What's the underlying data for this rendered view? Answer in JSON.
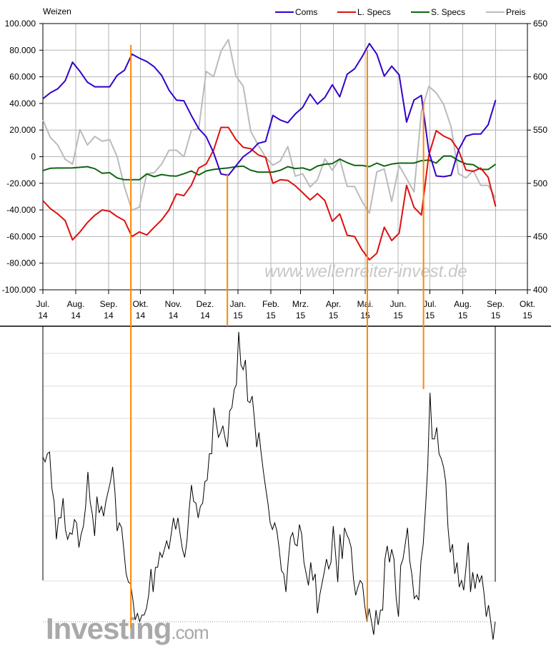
{
  "chart_data": [
    {
      "type": "line",
      "title": "Weizen",
      "legend_position": "top-right",
      "grid": true,
      "watermark": "www.wellenreiter-invest.de",
      "x_type": "date",
      "x_range": [
        "2014-07-01",
        "2015-10-01"
      ],
      "x_tick_labels": [
        [
          "Jul.",
          "14"
        ],
        [
          "Aug.",
          "14"
        ],
        [
          "Sep.",
          "14"
        ],
        [
          "Okt.",
          "14"
        ],
        [
          "Nov.",
          "14"
        ],
        [
          "Dez.",
          "14"
        ],
        [
          "Jan.",
          "15"
        ],
        [
          "Feb.",
          "15"
        ],
        [
          "Mrz.",
          "15"
        ],
        [
          "Apr.",
          "15"
        ],
        [
          "Mai.",
          "15"
        ],
        [
          "Jun.",
          "15"
        ],
        [
          "Jul.",
          "15"
        ],
        [
          "Aug.",
          "15"
        ],
        [
          "Sep.",
          "15"
        ],
        [
          "Okt.",
          "15"
        ]
      ],
      "x_tick_dates": [
        "2014-07-01",
        "2014-08-01",
        "2014-09-01",
        "2014-10-01",
        "2014-11-01",
        "2014-12-01",
        "2015-01-01",
        "2015-02-01",
        "2015-03-01",
        "2015-04-01",
        "2015-05-01",
        "2015-06-01",
        "2015-07-01",
        "2015-08-01",
        "2015-09-01",
        "2015-10-01"
      ],
      "y_left": {
        "range": [
          -100000,
          100000
        ],
        "tick_labels": [
          "100.000",
          "80.000",
          "60.000",
          "40.000",
          "20.000",
          "0",
          "-20.000",
          "-40.000",
          "-60.000",
          "-80.000",
          "-100.000"
        ],
        "negative_label_color": "#c00000"
      },
      "y_right": {
        "range": [
          400,
          650
        ],
        "tick_labels": [
          "650",
          "600",
          "550",
          "500",
          "450",
          "400"
        ]
      },
      "x": [
        "2014-07-01",
        "2014-07-08",
        "2014-07-15",
        "2014-07-22",
        "2014-07-29",
        "2014-08-05",
        "2014-08-12",
        "2014-08-19",
        "2014-08-26",
        "2014-09-02",
        "2014-09-09",
        "2014-09-16",
        "2014-09-23",
        "2014-09-30",
        "2014-10-07",
        "2014-10-14",
        "2014-10-21",
        "2014-10-28",
        "2014-11-04",
        "2014-11-11",
        "2014-11-18",
        "2014-11-25",
        "2014-12-02",
        "2014-12-09",
        "2014-12-16",
        "2014-12-23",
        "2014-12-30",
        "2015-01-06",
        "2015-01-13",
        "2015-01-20",
        "2015-01-27",
        "2015-02-03",
        "2015-02-10",
        "2015-02-17",
        "2015-02-24",
        "2015-03-03",
        "2015-03-10",
        "2015-03-17",
        "2015-03-24",
        "2015-03-31",
        "2015-04-07",
        "2015-04-14",
        "2015-04-21",
        "2015-04-28",
        "2015-05-05",
        "2015-05-12",
        "2015-05-19",
        "2015-05-26",
        "2015-06-02",
        "2015-06-09",
        "2015-06-16",
        "2015-06-23",
        "2015-06-30",
        "2015-07-07",
        "2015-07-14",
        "2015-07-21",
        "2015-07-28",
        "2015-08-04",
        "2015-08-11",
        "2015-08-18",
        "2015-08-25",
        "2015-09-01"
      ],
      "series": [
        {
          "name": "Coms",
          "color": "#3300cc",
          "axis": "left",
          "values": [
            43500,
            48000,
            51000,
            57000,
            71000,
            64000,
            56000,
            52500,
            52500,
            52500,
            61000,
            65000,
            77000,
            74000,
            71500,
            67500,
            61000,
            50000,
            42500,
            42000,
            31000,
            21000,
            15000,
            3000,
            -13000,
            -14000,
            -7000,
            0,
            4000,
            10000,
            11500,
            31000,
            27500,
            25500,
            32000,
            37000,
            47000,
            39500,
            44500,
            54000,
            45000,
            62000,
            66000,
            75000,
            85000,
            77000,
            60500,
            68000,
            61500,
            26000,
            42500,
            46000,
            4000,
            -14500,
            -15000,
            -14000,
            5000,
            15500,
            17000,
            17000,
            24000,
            42500
          ]
        },
        {
          "name": "L. Specs",
          "color": "#dd1111",
          "axis": "left",
          "values": [
            -33000,
            -39000,
            -43000,
            -48000,
            -62500,
            -56500,
            -49500,
            -44000,
            -40000,
            -41000,
            -45000,
            -48000,
            -60000,
            -56500,
            -58800,
            -53000,
            -47500,
            -40000,
            -28000,
            -29300,
            -21500,
            -8500,
            -5500,
            5000,
            22000,
            22000,
            13000,
            7000,
            6000,
            1400,
            -500,
            -20000,
            -17300,
            -17800,
            -21800,
            -27000,
            -32500,
            -27700,
            -33000,
            -48500,
            -43000,
            -59000,
            -60000,
            -70000,
            -77500,
            -72500,
            -53000,
            -63000,
            -57500,
            -21500,
            -38000,
            -43800,
            1000,
            19500,
            15500,
            13000,
            5000,
            -10000,
            -11000,
            -8500,
            -15500,
            -37500
          ]
        },
        {
          "name": "S. Specs",
          "color": "#116611",
          "axis": "left",
          "values": [
            -10500,
            -8700,
            -8500,
            -8500,
            -8400,
            -8000,
            -7500,
            -9000,
            -12500,
            -12000,
            -16000,
            -17300,
            -17300,
            -17300,
            -13000,
            -15000,
            -13400,
            -14300,
            -14600,
            -12800,
            -10700,
            -13700,
            -10700,
            -9600,
            -9000,
            -8400,
            -7500,
            -7100,
            -10200,
            -11600,
            -11600,
            -11600,
            -10200,
            -7500,
            -8900,
            -8400,
            -10200,
            -7000,
            -5700,
            -5200,
            -1800,
            -4500,
            -6600,
            -6600,
            -7500,
            -4800,
            -7100,
            -5500,
            -4800,
            -4800,
            -4800,
            -3000,
            -2500,
            -4800,
            500,
            500,
            -3000,
            -5400,
            -6000,
            -9600,
            -9600,
            -5700
          ]
        },
        {
          "name": "Preis",
          "color": "#bbbbbb",
          "axis": "right",
          "values": [
            559.6,
            543,
            536,
            522.5,
            518,
            550.5,
            536,
            544,
            539.5,
            541,
            525,
            496.6,
            474.7,
            477.6,
            509,
            510,
            518,
            531,
            531,
            525,
            549.5,
            551.6,
            605,
            600,
            624,
            635,
            601,
            591,
            549,
            536,
            524.5,
            517,
            521,
            534.5,
            506.7,
            509,
            496.6,
            503.4,
            522.9,
            512.3,
            522.9,
            497,
            497,
            483,
            472,
            510.8,
            513.5,
            483,
            516.8,
            504.5,
            492,
            567,
            591,
            585,
            574,
            553,
            509,
            505,
            512,
            498,
            498,
            486
          ]
        }
      ],
      "vertical_markers": {
        "color": "#ff8800",
        "dates": [
          "2014-09-22",
          "2014-12-22",
          "2015-05-03",
          "2015-06-25"
        ]
      }
    },
    {
      "type": "line",
      "source_logo": {
        "main": "Investing",
        "suffix": ".com"
      },
      "grid": true,
      "x_range": [
        "2014-07-01",
        "2015-08-30"
      ],
      "line_color": "#000000",
      "values": [
        574,
        571,
        576,
        577,
        555,
        547,
        524,
        537,
        537,
        549,
        530,
        524,
        528,
        527,
        536,
        534,
        519,
        527,
        532,
        544,
        565,
        547,
        539,
        526,
        550,
        540,
        544,
        538,
        547,
        553,
        559,
        568,
        553,
        529,
        534,
        531,
        517,
        503,
        498,
        497,
        487,
        475,
        479,
        474,
        478,
        478,
        482,
        490,
        506,
        492,
        507,
        507,
        516,
        513,
        518,
        523,
        518,
        527,
        537,
        530,
        537,
        527,
        518,
        513,
        523,
        542,
        557,
        547,
        546,
        537,
        544,
        546,
        559,
        560,
        576,
        576,
        604,
        595,
        586,
        589,
        593,
        585,
        580,
        602,
        604,
        615,
        618,
        650,
        630,
        627,
        633,
        608,
        607,
        611,
        597,
        580,
        589,
        576,
        565,
        555,
        546,
        534,
        530,
        534,
        529,
        518,
        505,
        503,
        492,
        511,
        525,
        528,
        521,
        520,
        533,
        527,
        510,
        503,
        496,
        510,
        499,
        503,
        479,
        490,
        497,
        504,
        512,
        506,
        510,
        532,
        516,
        498,
        527,
        512,
        531,
        527,
        524,
        519,
        500,
        490,
        495,
        499,
        497,
        484,
        474,
        482,
        474,
        466,
        481,
        472,
        481,
        481,
        512,
        520,
        510,
        518,
        512,
        488,
        477,
        508,
        512,
        521,
        531,
        511,
        502,
        488,
        490,
        487,
        511,
        521,
        543,
        568,
        613,
        585,
        585,
        592,
        576,
        573,
        568,
        559,
        531,
        516,
        521,
        503,
        510,
        495,
        499,
        493,
        507,
        522,
        492,
        504,
        494,
        503,
        498,
        502,
        491,
        477,
        484,
        474,
        463,
        474
      ]
    }
  ]
}
